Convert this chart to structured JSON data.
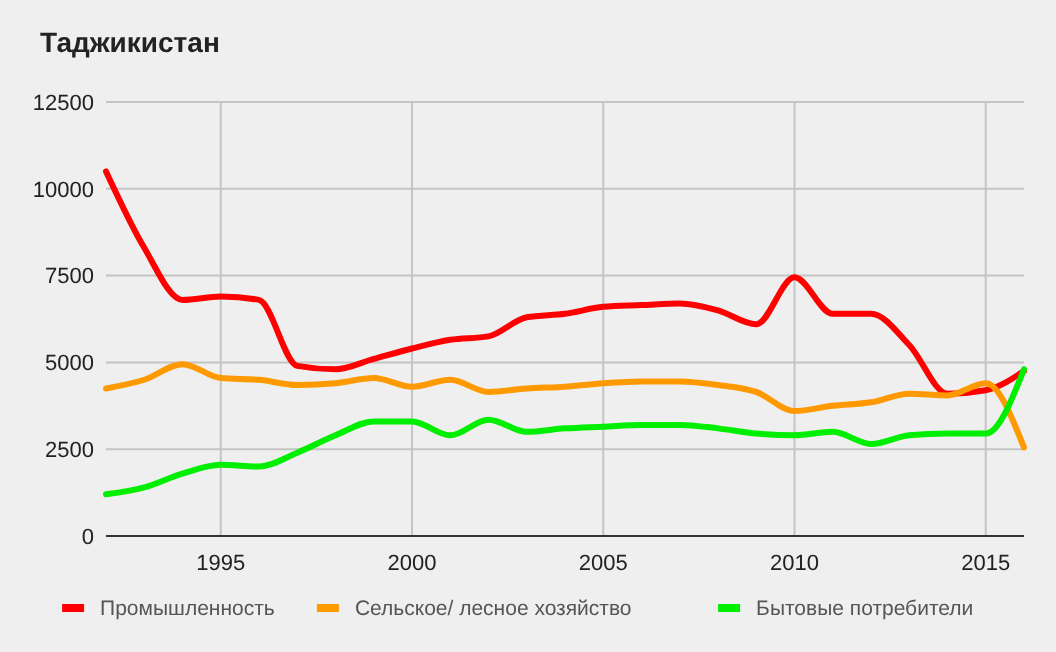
{
  "chart_data": {
    "type": "line",
    "title": "Таджикистан",
    "x": [
      1992,
      1993,
      1994,
      1995,
      1996,
      1997,
      1998,
      1999,
      2000,
      2001,
      2002,
      2003,
      2004,
      2005,
      2006,
      2007,
      2008,
      2009,
      2010,
      2011,
      2012,
      2013,
      2014,
      2015,
      2016
    ],
    "series": [
      {
        "name": "Промышленность",
        "color": "#ff0000",
        "values": [
          10500,
          8300,
          6800,
          6900,
          6800,
          4900,
          4800,
          5100,
          5400,
          5650,
          5750,
          6300,
          6400,
          6600,
          6650,
          6700,
          6500,
          6100,
          7450,
          6400,
          6400,
          5500,
          4100,
          4200,
          4750
        ]
      },
      {
        "name": "Сельское/ лесное хозяйство",
        "color": "#ff9900",
        "values": [
          4250,
          4500,
          4950,
          4550,
          4500,
          4350,
          4400,
          4550,
          4300,
          4500,
          4150,
          4250,
          4300,
          4400,
          4450,
          4450,
          4350,
          4150,
          3600,
          3750,
          3850,
          4100,
          4050,
          4400,
          2550
        ]
      },
      {
        "name": "Бытовые потребители",
        "color": "#00ee00",
        "values": [
          1200,
          1400,
          1800,
          2050,
          2000,
          2400,
          2900,
          3300,
          3300,
          2900,
          3350,
          3000,
          3100,
          3150,
          3200,
          3200,
          3100,
          2950,
          2900,
          3000,
          2650,
          2900,
          2950,
          2950,
          4800
        ]
      }
    ],
    "xlim": [
      1992,
      2016
    ],
    "xticks": [
      1995,
      2000,
      2005,
      2010,
      2015
    ],
    "ylim": [
      0,
      12500
    ],
    "yticks": [
      0,
      2500,
      5000,
      7500,
      10000,
      12500
    ],
    "grid": true,
    "legend": "bottom",
    "marker": "none",
    "line_style": "solid"
  }
}
